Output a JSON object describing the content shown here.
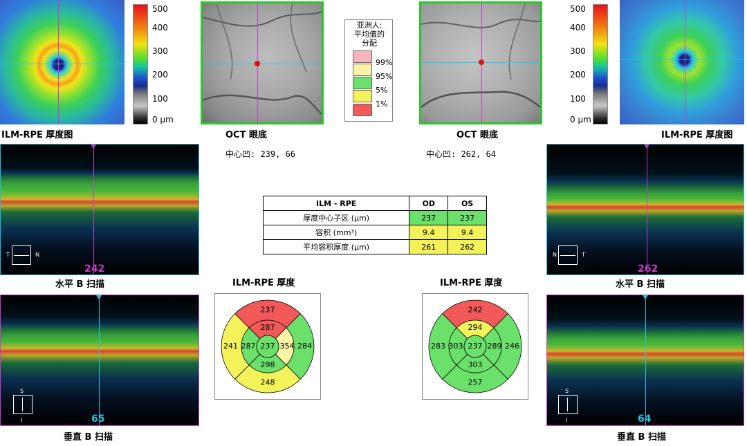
{
  "left": {
    "thickness_map_caption": "ILM-RPE 厚度图",
    "fundus_caption": "OCT 眼底",
    "fovea_text": "中心凹:  239, 66",
    "hscan_caption": "水平 B 扫描",
    "hscan_slice": "242",
    "hscan_nav_left": "T",
    "hscan_nav_right": "N",
    "vscan_caption": "垂直 B 扫描",
    "vscan_slice": "65",
    "vscan_nav_top": "S",
    "vscan_nav_bottom": "I"
  },
  "right": {
    "thickness_map_caption": "ILM-RPE 厚度图",
    "fundus_caption": "OCT 眼底",
    "fovea_text": "中心凹:  262, 64",
    "hscan_caption": "水平 B 扫描",
    "hscan_slice": "262",
    "hscan_nav_left": "N",
    "hscan_nav_right": "T",
    "vscan_caption": "垂直 B 扫描",
    "vscan_slice": "64",
    "vscan_nav_top": "S",
    "vscan_nav_bottom": "I"
  },
  "colorbar_labels": [
    "500",
    "400",
    "300",
    "200",
    "100",
    "0  µm"
  ],
  "normative_legend": {
    "title_lines": [
      "亚洲人:",
      "平均值的",
      "分配"
    ],
    "items": [
      {
        "label": "99%",
        "color": "#f7b6be"
      },
      {
        "label": "95%",
        "color": "#fbf3a6"
      },
      {
        "label": "5%",
        "color": "#6be06b"
      },
      {
        "label": "1%",
        "color": "#f25a5a"
      }
    ]
  },
  "summary_table": {
    "headers": [
      "ILM - RPE",
      "OD",
      "OS"
    ],
    "rows": [
      {
        "label": "厚度中心子区 (µm)",
        "od": "237",
        "os": "237",
        "od_color": "#6be06b",
        "os_color": "#6be06b"
      },
      {
        "label": "容积 (mm³)",
        "od": "9.4",
        "os": "9.4",
        "od_color": "#f4f25a",
        "os_color": "#f4f25a"
      },
      {
        "label": "平均容积厚度 (µm)",
        "od": "261",
        "os": "262",
        "od_color": "#f4f25a",
        "os_color": "#f4f25a"
      }
    ]
  },
  "grid_left": {
    "title": "ILM-RPE 厚度",
    "center": "237",
    "inner": {
      "top": "287",
      "right": "354",
      "bottom": "298",
      "left": "287"
    },
    "outer": {
      "top": "237",
      "right": "284",
      "bottom": "248",
      "left": "241"
    },
    "colors": {
      "center": "#6be06b",
      "inner_top": "#f25a5a",
      "inner_right": "#fbf3a6",
      "inner_bottom": "#6be06b",
      "inner_left": "#6be06b",
      "outer_top": "#f25a5a",
      "outer_right": "#6be06b",
      "outer_bottom": "#f4f25a",
      "outer_left": "#f4f25a"
    }
  },
  "grid_right": {
    "title": "ILM-RPE 厚度",
    "center": "237",
    "inner": {
      "top": "294",
      "right": "289",
      "bottom": "303",
      "left": "303"
    },
    "outer": {
      "top": "242",
      "right": "246",
      "bottom": "257",
      "left": "283"
    },
    "colors": {
      "center": "#6be06b",
      "inner_top": "#f4f25a",
      "inner_right": "#6be06b",
      "inner_bottom": "#6be06b",
      "inner_left": "#6be06b",
      "outer_top": "#f25a5a",
      "outer_right": "#6be06b",
      "outer_bottom": "#6be06b",
      "outer_left": "#6be06b"
    }
  }
}
